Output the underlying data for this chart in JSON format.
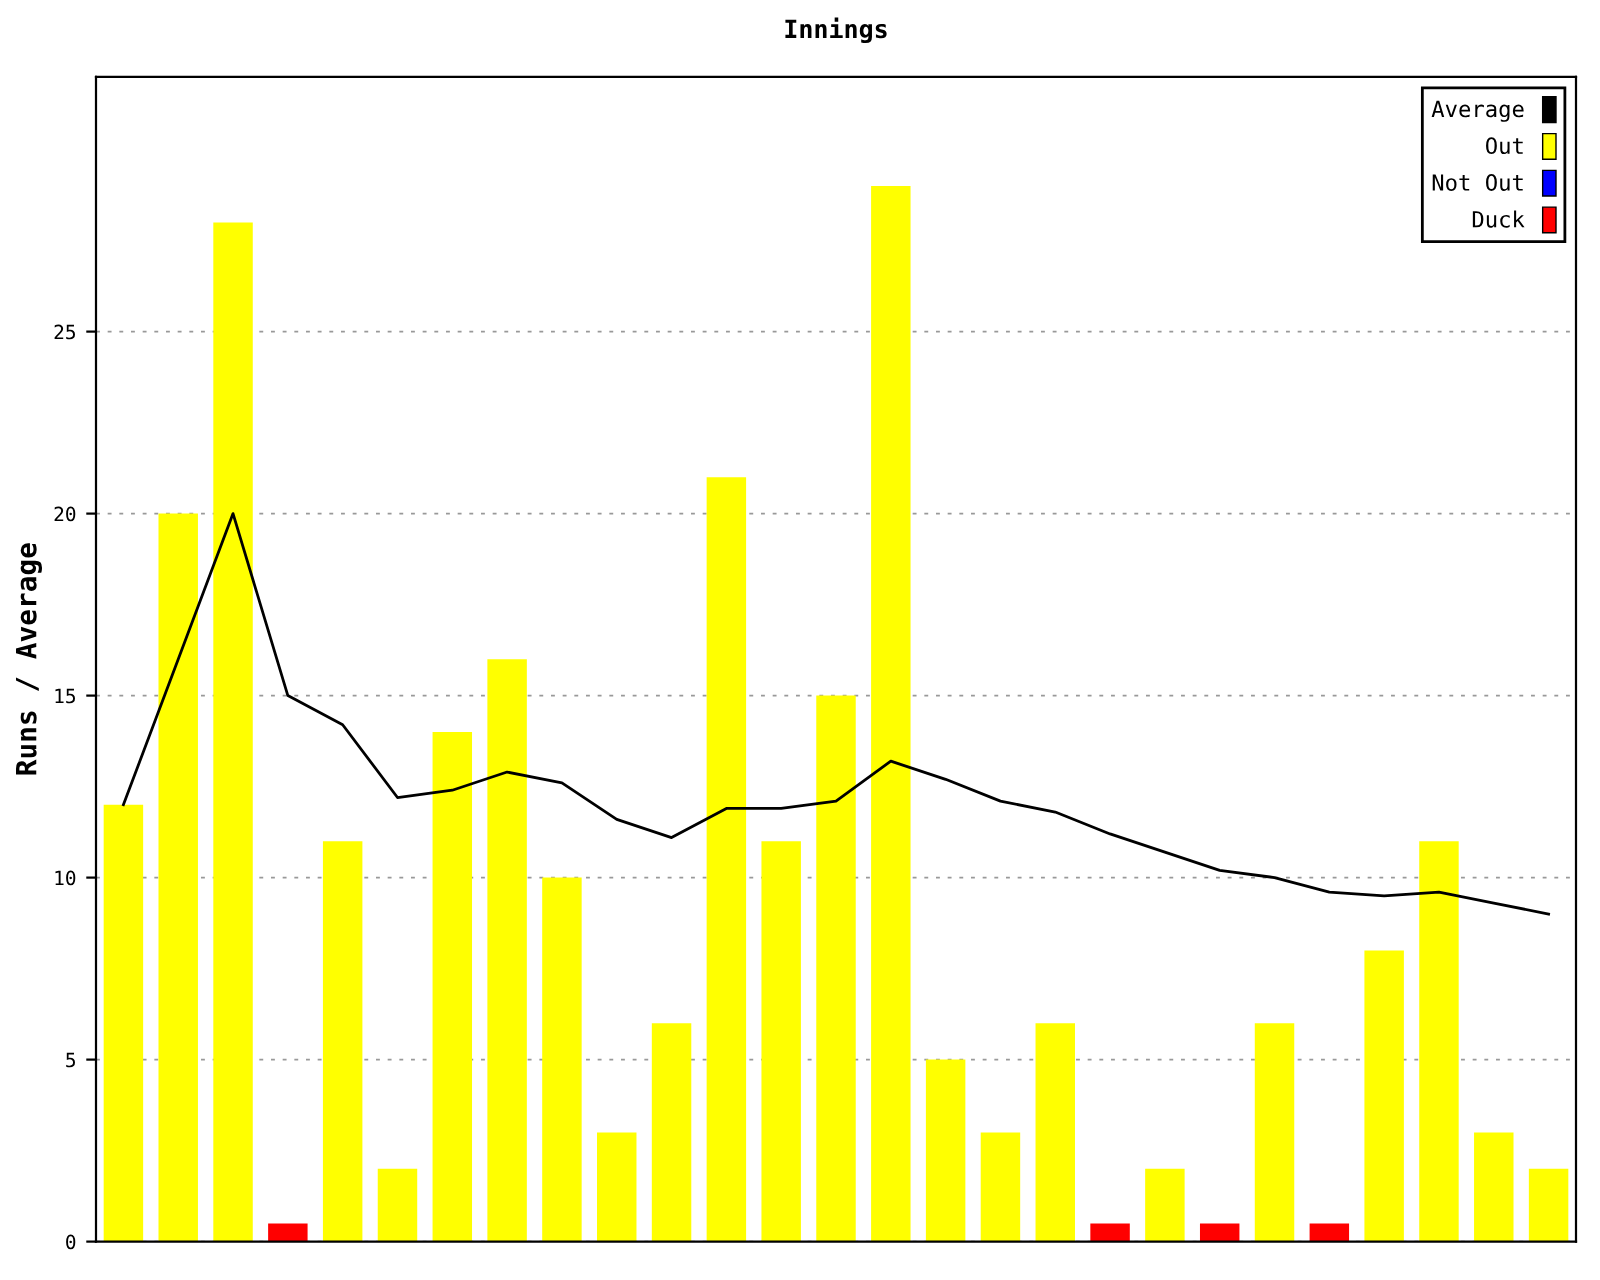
{
  "chart_data": {
    "type": "bar",
    "title": "Innings",
    "ylabel": "Runs / Average",
    "categories": [
      null,
      null,
      null,
      null,
      null,
      null,
      null,
      null,
      null,
      null,
      null,
      null,
      null,
      null,
      null,
      null,
      null,
      null,
      null,
      null,
      null,
      null,
      null,
      null,
      null,
      null,
      null
    ],
    "series": [
      {
        "name": "Average",
        "type": "line",
        "color": "#000000",
        "line_style": "solid",
        "marker": "none",
        "values": [
          12,
          16,
          20,
          15,
          14.2,
          12.2,
          12.4,
          12.9,
          12.6,
          11.6,
          11.1,
          11.9,
          11.9,
          12.1,
          13.2,
          12.7,
          12.1,
          11.8,
          11.2,
          10.7,
          10.2,
          10,
          9.6,
          9.5,
          9.6,
          9.3,
          9
        ]
      },
      {
        "name": "Out",
        "type": "bar",
        "color": "#ffff00",
        "values": [
          12,
          20,
          28,
          null,
          11,
          2,
          14,
          16,
          10,
          3,
          6,
          21,
          11,
          15,
          29,
          5,
          3,
          6,
          null,
          2,
          null,
          6,
          null,
          8,
          11,
          3,
          2
        ]
      },
      {
        "name": "Not Out",
        "type": "bar",
        "color": "#0000ff",
        "values": [
          null,
          null,
          null,
          null,
          null,
          null,
          null,
          null,
          null,
          null,
          null,
          null,
          null,
          null,
          null,
          null,
          null,
          null,
          null,
          null,
          null,
          null,
          null,
          null,
          null,
          null,
          null
        ]
      },
      {
        "name": "Duck",
        "type": "bar",
        "color": "#ff0000",
        "values": [
          null,
          null,
          null,
          0.5,
          null,
          null,
          null,
          null,
          null,
          null,
          null,
          null,
          null,
          null,
          null,
          null,
          null,
          null,
          0.5,
          null,
          0.5,
          null,
          0.5,
          null,
          null,
          null,
          null
        ]
      }
    ],
    "ylim": [
      0,
      32
    ],
    "yticks": [
      0,
      5,
      10,
      15,
      20,
      25
    ],
    "grid": "y",
    "legend": "top right",
    "tick_labels": "y"
  }
}
